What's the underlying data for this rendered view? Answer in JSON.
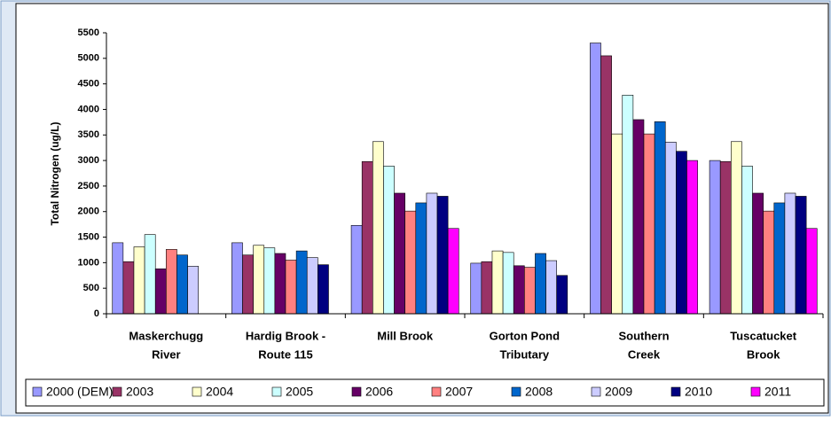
{
  "chart_data": {
    "type": "bar",
    "y_label": "Total Nitrogen (ug/L)",
    "categories": [
      [
        "Maskerchugg",
        "River"
      ],
      [
        "Hardig Brook -",
        "Route 115"
      ],
      [
        "Mill Brook"
      ],
      [
        "Gorton Pond",
        "Tributary"
      ],
      [
        "Southern",
        "Creek"
      ],
      [
        "Tuscatucket",
        "Brook"
      ]
    ],
    "series": [
      {
        "name": "2000 (DEM)",
        "color": "#9999ff",
        "values": [
          1390,
          1390,
          1730,
          990,
          5300,
          3000
        ]
      },
      {
        "name": "2003",
        "color": "#993366",
        "values": [
          1020,
          1150,
          2980,
          1020,
          5050,
          2980
        ]
      },
      {
        "name": "2004",
        "color": "#ffffcc",
        "values": [
          1310,
          1340,
          3370,
          1230,
          3520,
          3370
        ]
      },
      {
        "name": "2005",
        "color": "#ccffff",
        "values": [
          1550,
          1290,
          2890,
          1200,
          4280,
          2890
        ]
      },
      {
        "name": "2006",
        "color": "#660066",
        "values": [
          880,
          1180,
          2360,
          940,
          3800,
          2360
        ]
      },
      {
        "name": "2007",
        "color": "#ff8080",
        "values": [
          1260,
          1050,
          2010,
          910,
          3520,
          2010
        ]
      },
      {
        "name": "2008",
        "color": "#0066cc",
        "values": [
          1150,
          1230,
          2170,
          1180,
          3760,
          2170
        ]
      },
      {
        "name": "2009",
        "color": "#ccccff",
        "values": [
          930,
          1100,
          2360,
          1040,
          3360,
          2360
        ]
      },
      {
        "name": "2010",
        "color": "#000080",
        "values": [
          null,
          960,
          2300,
          750,
          3180,
          2300
        ]
      },
      {
        "name": "2011",
        "color": "#ff00ff",
        "values": [
          null,
          null,
          1670,
          null,
          3000,
          1670
        ]
      }
    ],
    "ylim": [
      0,
      5500
    ],
    "yticks": [
      0,
      500,
      1000,
      1500,
      2000,
      2500,
      3000,
      3500,
      4000,
      4500,
      5000,
      5500
    ],
    "grid": false,
    "legend": "bottom"
  }
}
